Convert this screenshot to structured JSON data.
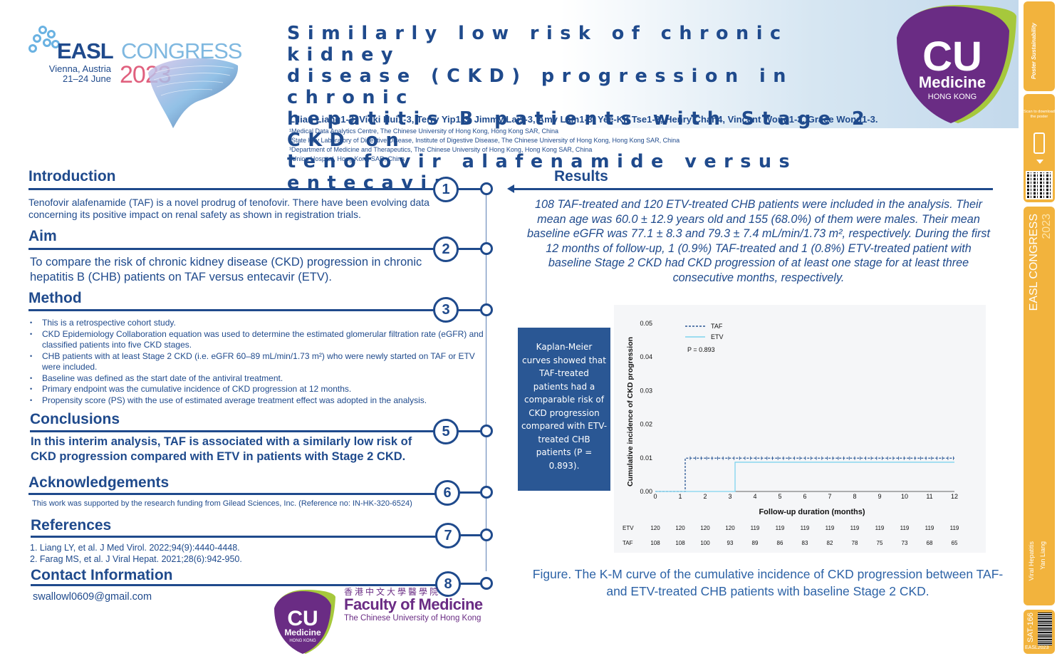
{
  "header": {
    "easl_word": "EASL",
    "easl_congress": "CONGRESS",
    "easl_city": "Vienna, Austria",
    "easl_dates": "21–24 June",
    "easl_year": "2023",
    "title_lines": [
      "Similarly low risk of chronic kidney",
      "disease (CKD) progression in chronic",
      "hepatitis B patients with Stage 2 CKD on",
      "tenofovir alafenamide versus entecavir"
    ],
    "authors": "Lilian Liang1-3, Vicki Hui1-3, Terry Yip1-3, Jimmy Lai1-3, Amy Lam1-3, Yee-Kit Tse1-3, Henry Chan4, Vincent Wong1-3, Grace Wong1-3.",
    "affiliations": [
      "¹Medical Data Analytics Centre, The Chinese University of Hong Kong, Hong Kong SAR, China",
      "²State Key Laboratory of Digestive Disease, Institute of Digestive Disease, The Chinese University of Hong Kong, Hong Kong SAR, China",
      "³Department of Medicine and Therapeutics, The Chinese University of Hong Kong, Hong Kong SAR, China",
      "⁴Union Hospital, Hong Kong SAR, China"
    ],
    "cu_badge": {
      "cu": "CU",
      "medicine": "Medicine",
      "hong_kong": "HONG KONG"
    }
  },
  "ribbon": {
    "poster_sustainability": "Poster Sustainability",
    "scan": "Scan to download the poster",
    "easl_v": "EASL CONGRESS",
    "year_v": "2023",
    "topic": "Viral Hepatitis",
    "author": "Yan Liang",
    "code": "SAT-166",
    "easlcode": "EASL2023"
  },
  "sections": {
    "introduction": {
      "heading": "Introduction",
      "number": "1",
      "text": "Tenofovir alafenamide (TAF) is a novel prodrug of tenofovir. There have been evolving data concerning its positive impact on renal safety as shown in registration trials."
    },
    "aim": {
      "heading": "Aim",
      "number": "2",
      "text": "To compare the risk of chronic kidney disease (CKD) progression in chronic hepatitis B (CHB) patients on TAF versus entecavir (ETV)."
    },
    "method": {
      "heading": "Method",
      "number": "3",
      "items": [
        "This is a retrospective cohort study.",
        "CKD Epidemiology Collaboration equation was used to determine the estimated glomerular filtration rate (eGFR) and classified patients into five CKD stages.",
        "CHB patients with at least Stage 2 CKD (i.e. eGFR 60–89 mL/min/1.73 m²) who were newly started on TAF or ETV were included.",
        "Baseline was defined as the start date of the antiviral treatment.",
        "Primary endpoint was the cumulative incidence of CKD progression at 12 months.",
        "Propensity score (PS) with the use of estimated average treatment effect was adopted in the analysis."
      ]
    },
    "conclusions": {
      "heading": "Conclusions",
      "number": "5",
      "text": "In this interim analysis, TAF is associated with a similarly low risk of CKD progression compared with ETV in patients with Stage 2 CKD."
    },
    "acknowledgements": {
      "heading": "Acknowledgements",
      "number": "6",
      "text": "This work was supported by the research funding from Gilead Sciences, Inc. (Reference no: IN-HK-320-6524)"
    },
    "references": {
      "heading": "References",
      "number": "7",
      "items": [
        "1.   Liang LY, et al. J Med Virol. 2022;94(9):4440-4448.",
        "2.   Farag MS, et al. J Viral Hepat. 2021;28(6):942-950."
      ]
    },
    "contact": {
      "heading": "Contact Information",
      "number": "8",
      "email": "swallowl0609@gmail.com"
    },
    "results": {
      "heading": "Results",
      "text": "108 TAF-treated and 120 ETV-treated CHB patients were included in the analysis. Their mean age was 60.0 ± 12.9 years old and 155 (68.0%) of them were males. Their mean baseline eGFR was 77.1 ± 8.3 and 79.3 ± 7.4 mL/min/1.73 m², respectively. During the first 12 months of follow-up, 1 (0.9%) TAF-treated and 1 (0.8%) ETV-treated patient with baseline Stage 2 CKD had CKD progression of at least one stage for at least three consecutive months, respectively.",
      "km_box": "Kaplan-Meier curves showed that TAF-treated patients had a comparable risk of CKD progression compared with ETV-treated CHB patients (P = 0.893).",
      "caption": "Figure. The K-M curve of the cumulative incidence of CKD progression between TAF- and ETV-treated CHB patients with baseline Stage 2 CKD."
    }
  },
  "footer_logo": {
    "cu": "CU",
    "medicine": "Medicine",
    "hong_kong": "HONG KONG",
    "chinese": "香港中文大學醫學院",
    "faculty": "Faculty of Medicine",
    "university": "The Chinese University of Hong Kong"
  },
  "colors": {
    "navy": "#1f4a8c",
    "taf_line": "#2a5794",
    "etv_line": "#7fd3ee",
    "ribbon": "#f2b33d",
    "cu_purple": "#6a2c84",
    "cu_green": "#a6c83c"
  },
  "chart_data": {
    "type": "line",
    "xlabel": "Follow-up duration (months)",
    "ylabel": "Cumulative incidence of CKD progression",
    "xlim": [
      0,
      12
    ],
    "ylim": [
      0,
      0.05
    ],
    "x_ticks": [
      0,
      1,
      2,
      3,
      4,
      5,
      6,
      7,
      8,
      9,
      10,
      11,
      12
    ],
    "y_ticks": [
      "0.00",
      "0.01",
      "0.02",
      "0.03",
      "0.04",
      "0.05"
    ],
    "annotation": "P = 0.893",
    "legend_position": "top-left",
    "series": [
      {
        "name": "TAF",
        "style": "dashed",
        "steps": [
          [
            0,
            0
          ],
          [
            1.2,
            0
          ],
          [
            1.2,
            0.0099
          ],
          [
            12,
            0.0099
          ]
        ],
        "censor_marks": true
      },
      {
        "name": "ETV",
        "style": "solid",
        "steps": [
          [
            0,
            0
          ],
          [
            3.2,
            0
          ],
          [
            3.2,
            0.0087
          ],
          [
            12,
            0.0087
          ]
        ],
        "censor_marks": false
      }
    ],
    "risk_table": {
      "timepoints": [
        0,
        1,
        2,
        3,
        4,
        5,
        6,
        7,
        8,
        9,
        10,
        11,
        12
      ],
      "rows": [
        {
          "label": "ETV",
          "values": [
            120,
            120,
            120,
            120,
            119,
            119,
            119,
            119,
            119,
            119,
            119,
            119,
            119
          ]
        },
        {
          "label": "TAF",
          "values": [
            108,
            108,
            100,
            93,
            89,
            86,
            83,
            82,
            78,
            75,
            73,
            68,
            65
          ]
        }
      ]
    }
  }
}
